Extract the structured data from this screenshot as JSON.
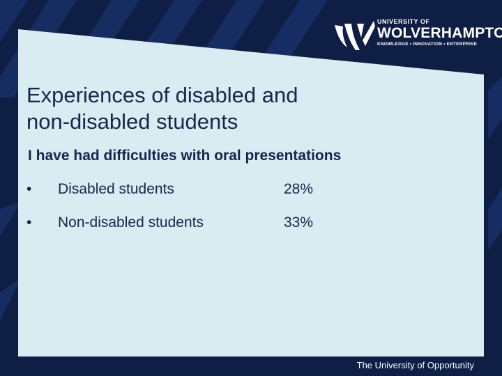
{
  "logo": {
    "university_of": "UNIVERSITY OF",
    "name": "WOLVERHAMPTON",
    "tagline": "KNOWLEDGE • INNOVATION • ENTERPRISE"
  },
  "slide": {
    "title_line1": "Experiences of disabled and",
    "title_line2": "non-disabled students",
    "subtitle": "I have had difficulties with oral presentations",
    "stats": [
      {
        "bullet": "•",
        "label": "Disabled students",
        "value": "28%"
      },
      {
        "bullet": "•",
        "label": "Non-disabled students",
        "value": "33%"
      }
    ]
  },
  "footer": {
    "text": "The University of Opportunity"
  },
  "colors": {
    "background": "#0f1e45",
    "panel": "#d9ecf1",
    "text": "#14274e",
    "stripe": "#1c3a7a"
  }
}
